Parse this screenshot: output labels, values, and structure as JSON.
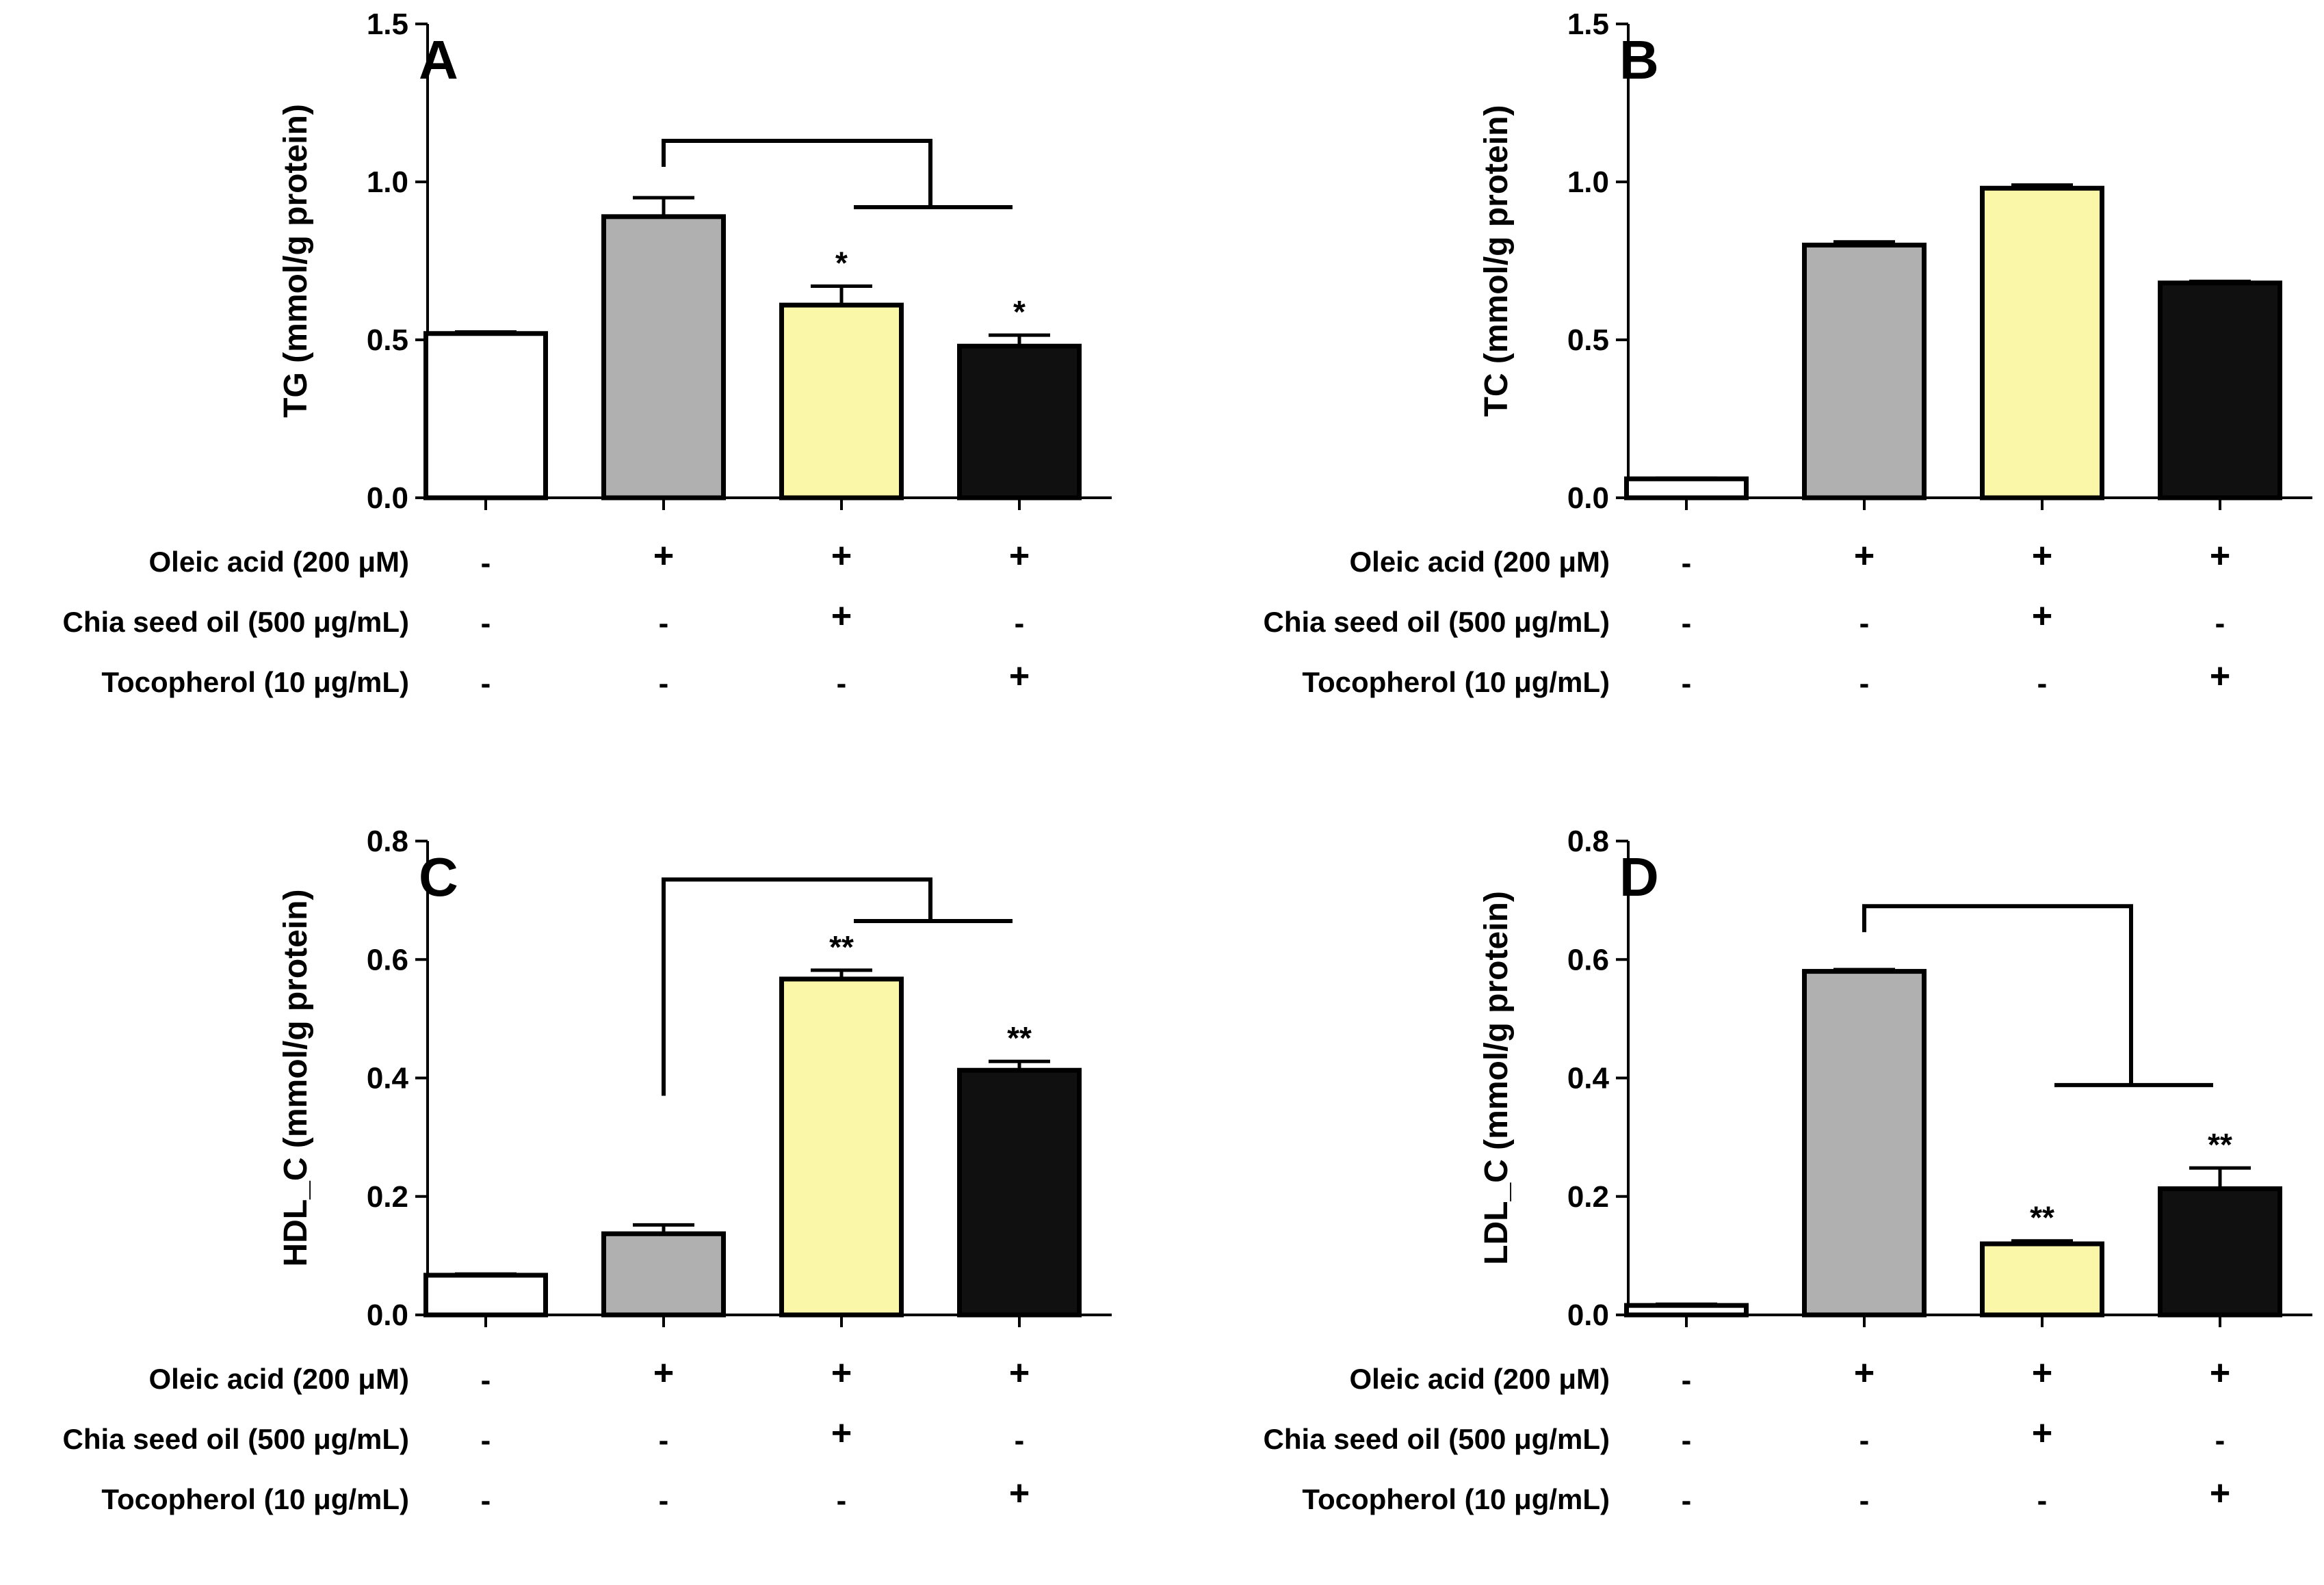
{
  "treatments": {
    "rows": [
      "Oleic acid (200 μM)",
      "Chia seed oil (500 μg/mL)",
      "Tocopherol (10 μg/mL)"
    ],
    "signs": [
      [
        "-",
        "+",
        "+",
        "+"
      ],
      [
        "-",
        "-",
        "+",
        "-"
      ],
      [
        "-",
        "-",
        "-",
        "+"
      ]
    ]
  },
  "colors": {
    "bars": [
      "#ffffff",
      "#b0b0b0",
      "#fbf7a8",
      "#101010"
    ],
    "stroke": "#000000"
  },
  "chart_data": [
    {
      "type": "bar",
      "panel": "A",
      "ylabel": "TG (mmol/g protein)",
      "ylim": [
        0,
        1.5
      ],
      "yticks": [
        0,
        0.5,
        1.0,
        1.5
      ],
      "tick_labels": [
        "0.0",
        "0.5",
        "1.0",
        "1.5"
      ],
      "values": [
        0.52,
        0.89,
        0.61,
        0.48
      ],
      "errors": [
        0.005,
        0.06,
        0.06,
        0.035
      ],
      "significance": [
        "",
        "",
        "*",
        "*"
      ],
      "bracket": {
        "from": 1,
        "to": [
          2,
          3
        ],
        "top": 1.13,
        "sub": 0.92
      }
    },
    {
      "type": "bar",
      "panel": "B",
      "ylabel": "TC (mmol/g protein)",
      "ylim": [
        0,
        1.5
      ],
      "yticks": [
        0,
        0.5,
        1.0,
        1.5
      ],
      "tick_labels": [
        "0.0",
        "0.5",
        "1.0",
        "1.5"
      ],
      "values": [
        0.06,
        0.8,
        0.98,
        0.68
      ],
      "errors": [
        0.002,
        0.01,
        0.01,
        0.005
      ],
      "significance": [
        "",
        "",
        "",
        ""
      ],
      "bracket": null
    },
    {
      "type": "bar",
      "panel": "C",
      "ylabel": "HDL_C (mmol/g protein)",
      "ylim": [
        0,
        0.8
      ],
      "yticks": [
        0,
        0.2,
        0.4,
        0.6,
        0.8
      ],
      "tick_labels": [
        "0.0",
        "0.2",
        "0.4",
        "0.6",
        "0.8"
      ],
      "values": [
        0.067,
        0.137,
        0.567,
        0.413
      ],
      "errors": [
        0.002,
        0.015,
        0.015,
        0.015
      ],
      "significance": [
        "",
        "",
        "**",
        "**"
      ],
      "bracket": {
        "from": 1,
        "to": [
          2,
          3
        ],
        "top": 0.735,
        "sub": 0.665,
        "from_bottom": 0.37
      }
    },
    {
      "type": "bar",
      "panel": "D",
      "ylabel": "LDL_C (mmol/g protein)",
      "ylim": [
        0,
        0.8
      ],
      "yticks": [
        0,
        0.2,
        0.4,
        0.6,
        0.8
      ],
      "tick_labels": [
        "0.0",
        "0.2",
        "0.4",
        "0.6",
        "0.8"
      ],
      "values": [
        0.016,
        0.58,
        0.12,
        0.213
      ],
      "errors": [
        0.002,
        0.003,
        0.005,
        0.035
      ],
      "significance": [
        "",
        "",
        "**",
        "**"
      ],
      "bracket": {
        "from": 1,
        "to": [
          2,
          3
        ],
        "top": 0.69,
        "sub": 0.388
      }
    }
  ]
}
